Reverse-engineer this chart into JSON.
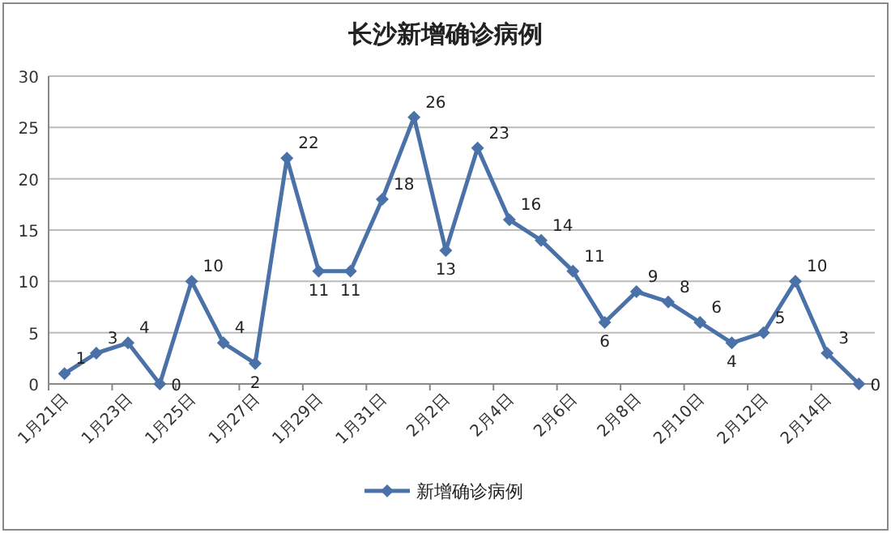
{
  "chart_data": {
    "type": "line",
    "title": "长沙新增确诊病例",
    "categories": [
      "1月21日",
      null,
      "1月23日",
      null,
      "1月25日",
      null,
      "1月27日",
      null,
      "1月29日",
      null,
      "1月31日",
      null,
      "2月2日",
      null,
      "2月4日",
      null,
      "2月6日",
      null,
      "2月8日",
      null,
      "2月10日",
      null,
      "2月12日",
      null,
      "2月14日",
      null
    ],
    "series": [
      {
        "name": "新增确诊病例",
        "color": "#4a72a8",
        "values": [
          1,
          3,
          4,
          0,
          10,
          4,
          2,
          22,
          11,
          11,
          18,
          26,
          13,
          23,
          16,
          14,
          11,
          6,
          9,
          8,
          6,
          4,
          5,
          10,
          3,
          0
        ]
      }
    ],
    "ylim": [
      0,
      30
    ],
    "yticks": [
      0,
      5,
      10,
      15,
      20,
      25,
      30
    ],
    "grid": "y",
    "legend": "bottom",
    "marker": "diamond",
    "line_style": "solid",
    "data_labels": true
  }
}
